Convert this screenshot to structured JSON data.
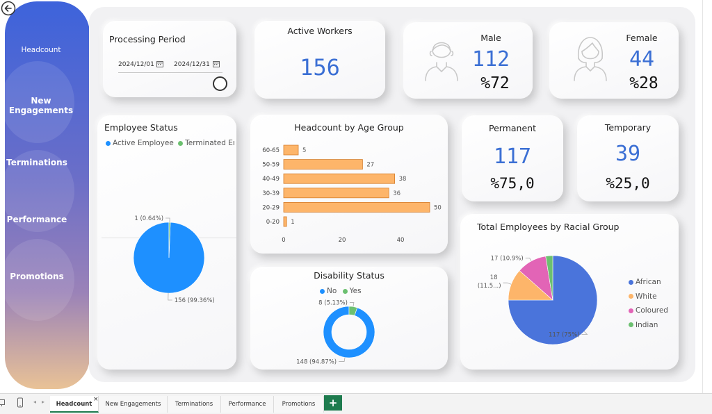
{
  "nav": {
    "items": [
      "Headcount",
      "New Engagements",
      "Terminations",
      "Performance",
      "Promotions"
    ]
  },
  "processing": {
    "title": "Processing Period",
    "start_date": "2024/12/01",
    "end_date": "2024/12/31"
  },
  "kpis": {
    "active_title": "Active Workers",
    "active_value": "156",
    "male_title": "Male",
    "male_value": "112",
    "male_pct": "%72",
    "female_title": "Female",
    "female_value": "44",
    "female_pct": "%28",
    "permanent_title": "Permanent",
    "permanent_value": "117",
    "permanent_pct": "%75,0",
    "temporary_title": "Temporary",
    "temporary_value": "39",
    "temporary_pct": "%25,0"
  },
  "colors": {
    "accent": "#3b6fd4",
    "blue": "#1e90ff",
    "green": "#6cc070",
    "orange": "#fdb56a",
    "royal": "#4a74db",
    "pink": "#e264b6",
    "tab_green": "#1e7b4e"
  },
  "tabs": [
    "Headcount",
    "New Engagements",
    "Terminations",
    "Performance",
    "Promotions"
  ],
  "tab_add": "+",
  "tab_close": "×",
  "chart_data": [
    {
      "type": "pie",
      "title": "Employee Status",
      "legend": [
        "Active Employee",
        "Terminated Em..."
      ],
      "slices": [
        {
          "label": "Active Employee",
          "value": 156,
          "display": "156 (99.36%)"
        },
        {
          "label": "Terminated Employee",
          "value": 1,
          "display": "1 (0.64%)"
        }
      ]
    },
    {
      "type": "bar",
      "orientation": "horizontal",
      "title": "Headcount by Age Group",
      "categories": [
        "60-65",
        "50-59",
        "40-49",
        "30-39",
        "20-29",
        "0-20"
      ],
      "values": [
        5,
        27,
        38,
        36,
        50,
        1
      ],
      "xticks": [
        "0",
        "20",
        "40"
      ],
      "xlim": [
        0,
        50
      ]
    },
    {
      "type": "pie",
      "donut": true,
      "title": "Disability Status",
      "legend": [
        "No",
        "Yes"
      ],
      "slices": [
        {
          "label": "No",
          "value": 148,
          "display": "148 (94.87%)"
        },
        {
          "label": "Yes",
          "value": 8,
          "display": "8 (5.13%)"
        }
      ]
    },
    {
      "type": "pie",
      "title": "Total Employees by Racial Group",
      "legend": [
        "African",
        "White",
        "Coloured",
        "Indian"
      ],
      "slices": [
        {
          "label": "African",
          "value": 117,
          "display": "117 (75%)"
        },
        {
          "label": "White",
          "value": 18,
          "display_line1": "18",
          "display_line2": "(11.5...)"
        },
        {
          "label": "Coloured",
          "value": 17,
          "display": "17 (10.9%)"
        },
        {
          "label": "Indian",
          "value": 4,
          "display": ""
        }
      ]
    }
  ]
}
